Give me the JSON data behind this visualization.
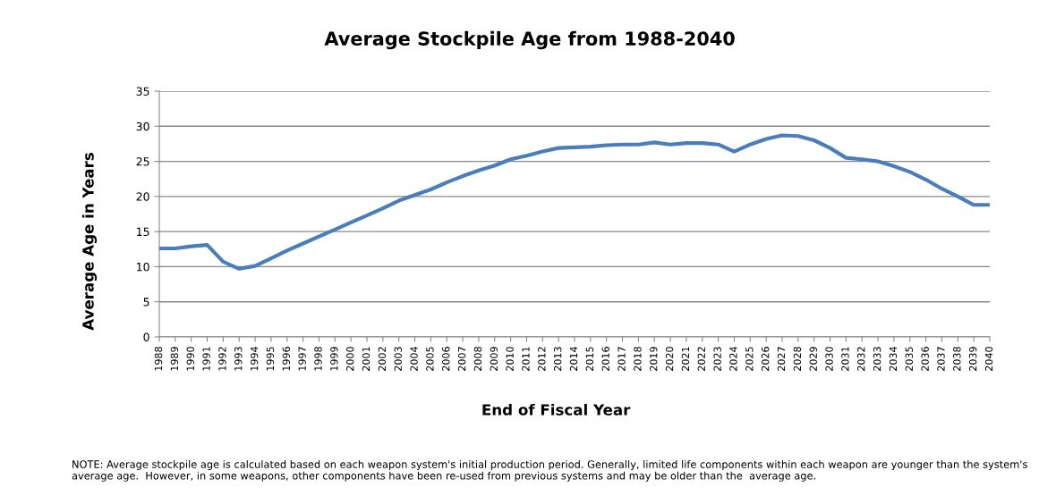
{
  "chart_data": {
    "type": "line",
    "title": "Average Stockpile Age from 1988-2040",
    "xlabel": "End of Fiscal Year",
    "ylabel": "Average Age in Years",
    "categories": [
      "1988",
      "1989",
      "1990",
      "1991",
      "1992",
      "1993",
      "1994",
      "1995",
      "1996",
      "1997",
      "1998",
      "1999",
      "2000",
      "2001",
      "2002",
      "2003",
      "2004",
      "2005",
      "2006",
      "2007",
      "2008",
      "2009",
      "2010",
      "2011",
      "2012",
      "2013",
      "2014",
      "2015",
      "2016",
      "2017",
      "2018",
      "2019",
      "2020",
      "2021",
      "2022",
      "2023",
      "2024",
      "2025",
      "2026",
      "2027",
      "2028",
      "2029",
      "2030",
      "2031",
      "2032",
      "2033",
      "2034",
      "2035",
      "2036",
      "2037",
      "2038",
      "2039",
      "2040"
    ],
    "series": [
      {
        "color": "#4a7ebb",
        "values": [
          12.6,
          12.6,
          12.9,
          13.1,
          10.7,
          9.7,
          10.1,
          11.2,
          12.3,
          13.3,
          14.3,
          15.3,
          16.3,
          17.3,
          18.3,
          19.4,
          20.2,
          21.0,
          22.0,
          22.9,
          23.7,
          24.4,
          25.3,
          25.8,
          26.4,
          26.9,
          27.0,
          27.1,
          27.3,
          27.4,
          27.4,
          27.7,
          27.4,
          27.6,
          27.6,
          27.4,
          26.4,
          27.4,
          28.2,
          28.7,
          28.6,
          28.0,
          26.9,
          25.5,
          25.3,
          25.0,
          24.3,
          23.5,
          22.4,
          21.1,
          20.0,
          18.8,
          18.8
        ]
      }
    ],
    "ylim": [
      0,
      35
    ],
    "yticks": [
      0,
      5,
      10,
      15,
      20,
      25,
      30,
      35
    ],
    "grid": "y",
    "marker": "none",
    "line_style": "solid",
    "annotations": [
      "NOTE: Average stockpile age is calculated based on each weapon system's initial production period. Generally, limited life components within each weapon are younger than the system's average age.  However, in some weapons, other components have been re-used from previous systems and may be older than the  average age."
    ]
  }
}
